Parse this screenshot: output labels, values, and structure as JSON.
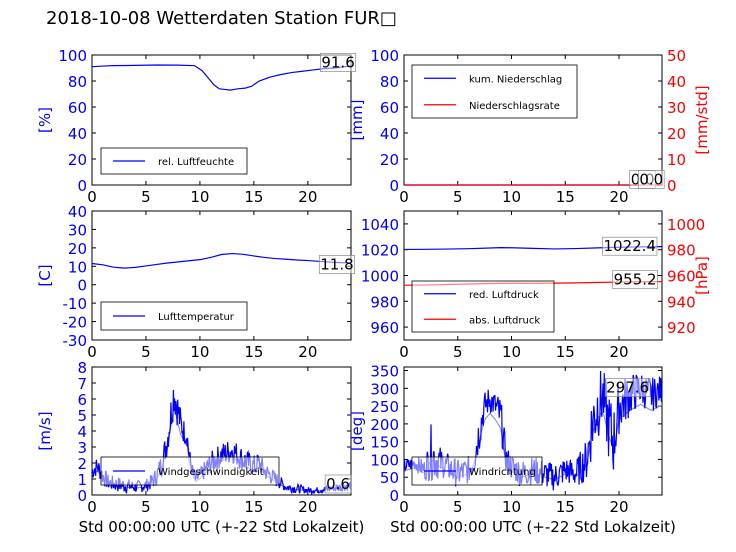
{
  "figure": {
    "title": "2018-10-08 Wetterdaten Station FUR□",
    "xlabel": "Std 00:00:00 UTC (+-22 Std Lokalzeit)",
    "colors": {
      "blue": "#0000ff",
      "red": "#ff0000",
      "lightblue": "#7f7fff",
      "axis": "#000000"
    }
  },
  "chart_data": [
    {
      "id": "humidity",
      "type": "line",
      "xlim": [
        0,
        24
      ],
      "xticks": [
        0,
        5,
        10,
        15,
        20
      ],
      "ylim": [
        0,
        100
      ],
      "yticks": [
        0,
        20,
        40,
        60,
        80,
        100
      ],
      "ylabel": "[%]",
      "ylabel_color": "#0000ff",
      "series": [
        {
          "name": "rel. Luftfeuchte",
          "color": "#0000ff",
          "x": [
            0,
            1,
            2,
            4,
            6,
            8,
            9.5,
            10.2,
            10.8,
            11.3,
            11.8,
            12.3,
            12.8,
            13.5,
            14.2,
            14.8,
            15.5,
            16.5,
            17.5,
            18.5,
            19.5,
            20.5,
            21.5,
            22.5,
            24
          ],
          "y": [
            91,
            91.5,
            91.8,
            92,
            92.3,
            92.2,
            91.8,
            88,
            82,
            77,
            74,
            73.5,
            73,
            74,
            74.5,
            76,
            80,
            83,
            85,
            86.5,
            87.5,
            88.5,
            89.5,
            90,
            91.6
          ]
        }
      ],
      "legend": [
        "rel. Luftfeuchte"
      ],
      "legend_loc": "lower-left",
      "annotations": [
        {
          "text": "91.6",
          "x": 22.8,
          "y": 95
        }
      ]
    },
    {
      "id": "precip",
      "type": "line",
      "xlim": [
        0,
        24
      ],
      "xticks": [
        0,
        5,
        10,
        15,
        20
      ],
      "ylim": [
        0,
        100
      ],
      "yticks": [
        0,
        20,
        40,
        60,
        80,
        100
      ],
      "ylabel": "[mm]",
      "ylabel_color": "#0000ff",
      "ylim2": [
        0,
        50
      ],
      "yticks2": [
        0,
        10,
        20,
        30,
        40,
        50
      ],
      "ylabel2": "[mm/std]",
      "ylabel2_color": "#ff0000",
      "series": [
        {
          "name": "kum. Niederschlag",
          "color": "#0000ff",
          "x": [
            0,
            24
          ],
          "y": [
            0,
            0
          ]
        },
        {
          "name": "Niederschlagsrate",
          "color": "#ff0000",
          "axis": "right",
          "x": [
            0,
            24
          ],
          "y": [
            0,
            0
          ]
        }
      ],
      "legend": [
        "kum. Niederschlag",
        "Niederschlagsrate"
      ],
      "legend_loc": "upper-left",
      "annotations": [
        {
          "text": "0.0",
          "x": 22.2,
          "y": 5
        },
        {
          "text": "0.0",
          "x": 23.0,
          "y": 5
        }
      ]
    },
    {
      "id": "temperature",
      "type": "line",
      "xlim": [
        0,
        24
      ],
      "xticks": [
        0,
        5,
        10,
        15,
        20
      ],
      "ylim": [
        -30,
        40
      ],
      "yticks": [
        -30,
        -20,
        -10,
        0,
        10,
        20,
        30,
        40
      ],
      "ylabel": "[C]",
      "ylabel_color": "#0000ff",
      "series": [
        {
          "name": "Lufttemperatur",
          "color": "#0000ff",
          "x": [
            0,
            1,
            2,
            3,
            4,
            5,
            6,
            7,
            8,
            9,
            10,
            11,
            12,
            13,
            14,
            15,
            16,
            17,
            18,
            19,
            20,
            21,
            22,
            23,
            24
          ],
          "y": [
            11.5,
            10.8,
            9.5,
            9.0,
            9.4,
            10.2,
            11.0,
            11.8,
            12.4,
            13.0,
            13.6,
            14.8,
            16.4,
            16.9,
            16.5,
            15.6,
            14.8,
            14.2,
            13.8,
            13.4,
            13.1,
            12.7,
            12.3,
            12.0,
            11.8
          ]
        }
      ],
      "legend": [
        "Lufttemperatur"
      ],
      "legend_loc": "lower-left",
      "annotations": [
        {
          "text": "11.8",
          "x": 22.7,
          "y": 11.5
        }
      ]
    },
    {
      "id": "pressure",
      "type": "line",
      "xlim": [
        0,
        24
      ],
      "xticks": [
        0,
        5,
        10,
        15,
        20
      ],
      "ylim": [
        950,
        1050
      ],
      "yticks": [
        960,
        980,
        1000,
        1020,
        1040
      ],
      "ylabel": "",
      "ylabel_color": "#0000ff",
      "ylim2": [
        910,
        1010
      ],
      "yticks2": [
        920,
        940,
        960,
        980,
        1000
      ],
      "ylabel2": "[hPa]",
      "ylabel2_color": "#ff0000",
      "series": [
        {
          "name": "red. Luftdruck",
          "color": "#0000ff",
          "x": [
            0,
            2,
            4,
            6,
            8,
            9,
            10,
            12,
            14,
            16,
            18,
            20,
            22,
            24
          ],
          "y": [
            1020.2,
            1020.3,
            1020.5,
            1020.8,
            1021.3,
            1021.6,
            1021.5,
            1021,
            1020.6,
            1020.9,
            1021.4,
            1021.9,
            1022.2,
            1022.4
          ]
        },
        {
          "name": "abs. Luftdruck",
          "color": "#ff0000",
          "axis": "right",
          "x": [
            0,
            2,
            4,
            6,
            8,
            10,
            12,
            14,
            16,
            18,
            20,
            22,
            24
          ],
          "y": [
            952.5,
            952.6,
            953.0,
            953.4,
            953.8,
            954.0,
            954.0,
            954.1,
            954.3,
            954.6,
            954.9,
            955.1,
            955.2
          ]
        }
      ],
      "legend": [
        "red. Luftdruck",
        "abs. Luftdruck"
      ],
      "legend_loc": "lower-left",
      "annotations": [
        {
          "text": "1022.4",
          "x": 21.0,
          "y": 1023.5
        },
        {
          "text": "955.2",
          "x": 21.5,
          "y": 997.5
        }
      ]
    },
    {
      "id": "wind_speed",
      "type": "line",
      "xlim": [
        0,
        24
      ],
      "xticks": [
        0,
        5,
        10,
        15,
        20
      ],
      "ylim": [
        0,
        8
      ],
      "yticks": [
        0,
        1,
        2,
        3,
        4,
        5,
        6,
        7,
        8
      ],
      "ylabel": "[m/s]",
      "ylabel_color": "#0000ff",
      "series": [
        {
          "name": "Windgeschwindigkeit",
          "color": "#0000ff",
          "noise": true,
          "x": [
            0,
            0.5,
            1,
            1.5,
            2,
            3,
            4,
            5,
            5.5,
            6,
            6.5,
            7,
            7.3,
            7.6,
            7.9,
            8.2,
            8.5,
            8.8,
            9.0,
            9.3,
            9.6,
            10,
            11,
            12,
            13,
            13.5,
            14,
            15,
            15.5,
            16,
            17,
            18,
            19,
            20,
            21,
            22,
            23,
            24
          ],
          "y": [
            1.5,
            1.8,
            1.2,
            0.8,
            0.7,
            0.6,
            0.5,
            0.6,
            0.8,
            1.2,
            2.0,
            3.5,
            5.0,
            6.5,
            5.5,
            4.5,
            4.0,
            3.8,
            2.5,
            1.5,
            1.0,
            1.2,
            2.0,
            2.5,
            2.8,
            2.5,
            2.2,
            1.8,
            2.0,
            1.5,
            1.0,
            0.5,
            0.4,
            0.3,
            0.3,
            0.4,
            0.5,
            0.6
          ],
          "spread": [
            0.6,
            0.6,
            0.6,
            0.5,
            0.5,
            0.5,
            0.4,
            0.4,
            0.5,
            0.6,
            0.8,
            1.0,
            1.2,
            1.5,
            1.2,
            1.0,
            0.8,
            0.8,
            0.6,
            0.5,
            0.5,
            0.5,
            0.7,
            0.8,
            0.8,
            0.8,
            0.8,
            0.7,
            0.7,
            0.6,
            0.5,
            0.3,
            0.3,
            0.2,
            0.2,
            0.2,
            0.3,
            0.3
          ]
        }
      ],
      "legend": [
        "Windgeschwindigkeit"
      ],
      "legend_loc": "lower-left",
      "annotations": [
        {
          "text": "0.6",
          "x": 22.8,
          "y": 0.75
        }
      ]
    },
    {
      "id": "wind_direction",
      "type": "line",
      "xlim": [
        0,
        24
      ],
      "xticks": [
        0,
        5,
        10,
        15,
        20
      ],
      "ylim": [
        0,
        360
      ],
      "yticks": [
        0,
        50,
        100,
        150,
        200,
        250,
        300,
        350
      ],
      "ylabel": "[deg]",
      "ylabel_color": "#0000ff",
      "series": [
        {
          "name": "Windrichtung",
          "color": "#0000ff",
          "noise": true,
          "x": [
            0,
            1,
            2,
            2.5,
            3,
            3.5,
            4,
            5,
            6,
            6.5,
            7,
            7.5,
            8,
            8.5,
            9,
            9.5,
            10,
            11,
            12,
            13,
            14,
            15,
            16,
            17,
            17.5,
            18,
            18.5,
            19,
            19.5,
            20,
            21,
            22,
            23,
            24
          ],
          "y": [
            80,
            90,
            70,
            120,
            100,
            90,
            80,
            60,
            70,
            100,
            180,
            250,
            270,
            250,
            220,
            100,
            80,
            60,
            70,
            60,
            50,
            70,
            60,
            100,
            200,
            250,
            280,
            200,
            150,
            250,
            280,
            300,
            280,
            297.6
          ],
          "spread": [
            20,
            20,
            30,
            80,
            60,
            40,
            40,
            40,
            40,
            50,
            60,
            40,
            40,
            40,
            60,
            40,
            40,
            40,
            40,
            40,
            40,
            40,
            40,
            60,
            100,
            100,
            80,
            100,
            100,
            80,
            60,
            50,
            50,
            40
          ]
        }
      ],
      "legend": [
        "Windrichtung"
      ],
      "legend_loc": "lower-left",
      "annotations": [
        {
          "text": "297.6",
          "x": 20.8,
          "y": 305
        }
      ]
    }
  ]
}
